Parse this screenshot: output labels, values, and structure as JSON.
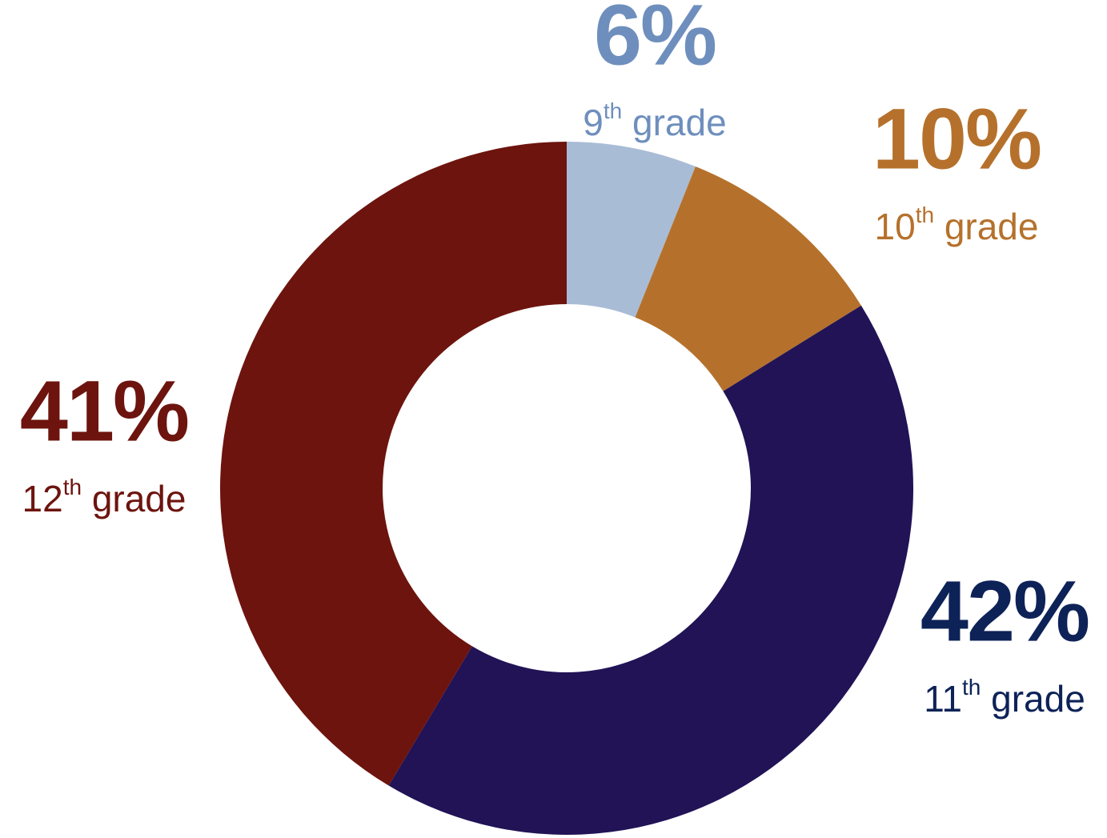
{
  "chart_data": {
    "type": "donut",
    "categories": [
      "9th grade",
      "10th grade",
      "11th grade",
      "12th grade"
    ],
    "values": [
      6,
      10,
      42,
      41
    ],
    "value_labels": [
      "6%",
      "10%",
      "42%",
      "41%"
    ],
    "colors": [
      "#a9bcd6",
      "#b5712c",
      "#211356",
      "#6d140e"
    ],
    "label_colors": [
      "#6e8fbd",
      "#b5712c",
      "#0d2257",
      "#6d140e"
    ]
  }
}
